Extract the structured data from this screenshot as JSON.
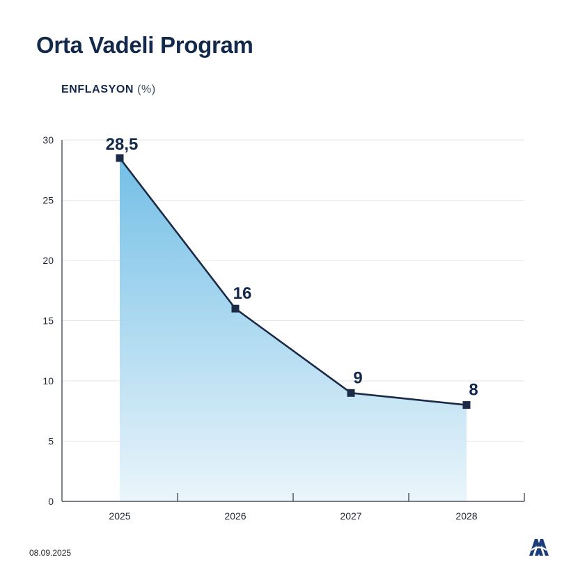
{
  "header": {
    "title": "Orta Vadeli Program",
    "subtitle_main": "ENFLASYON",
    "subtitle_unit": "(%)"
  },
  "footer": {
    "date": "08.09.2025",
    "logo": "aa-logo"
  },
  "colors": {
    "line": "#1b2a45",
    "fill_top": "#74bfe6",
    "fill_bottom": "#eaf5fb",
    "grid": "#e3e6ea",
    "axis": "#2b3140",
    "title": "#13294b"
  },
  "chart_data": {
    "type": "area",
    "title": "ENFLASYON (%)",
    "categories": [
      "2025",
      "2026",
      "2027",
      "2028"
    ],
    "series": [
      {
        "name": "Enflasyon",
        "values": [
          28.5,
          16,
          9,
          8
        ],
        "labels": [
          "28,5",
          "16",
          "9",
          "8"
        ]
      }
    ],
    "ylim": [
      0,
      30
    ],
    "yticks": [
      0,
      5,
      10,
      15,
      20,
      25,
      30
    ],
    "xlabel": "",
    "ylabel": "",
    "grid": true,
    "marker": "square"
  }
}
